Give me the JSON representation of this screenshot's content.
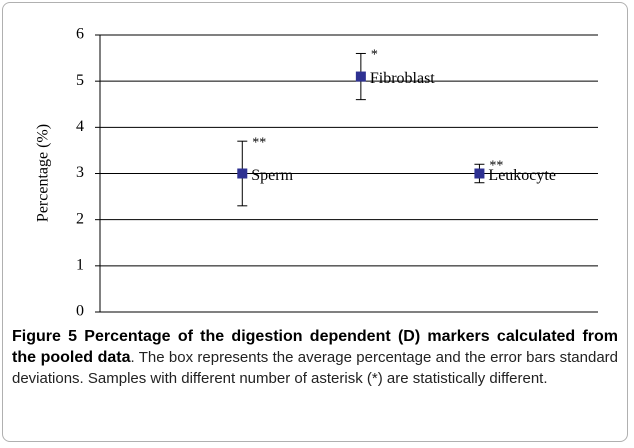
{
  "chart_data": {
    "type": "errorbar",
    "ylabel": "Percentage (%)",
    "categories": [
      "Sperm",
      "Fibroblast",
      "Leukocyte"
    ],
    "values": [
      3.0,
      5.1,
      3.0
    ],
    "errors": [
      0.7,
      0.5,
      0.2
    ],
    "annotations": [
      "**",
      "*",
      "**"
    ],
    "color": "#2e3192",
    "ylim": [
      0,
      6
    ],
    "yticks": [
      0,
      1,
      2,
      3,
      4,
      5,
      6
    ],
    "grid": true,
    "caption_title": "Figure 5 Percentage of the digestion dependent (D) markers calculated from the pooled data",
    "caption_text": ". The box represents the average percentage and the error bars standard deviations. Samples with different number of asterisk (*) are statistically different."
  }
}
